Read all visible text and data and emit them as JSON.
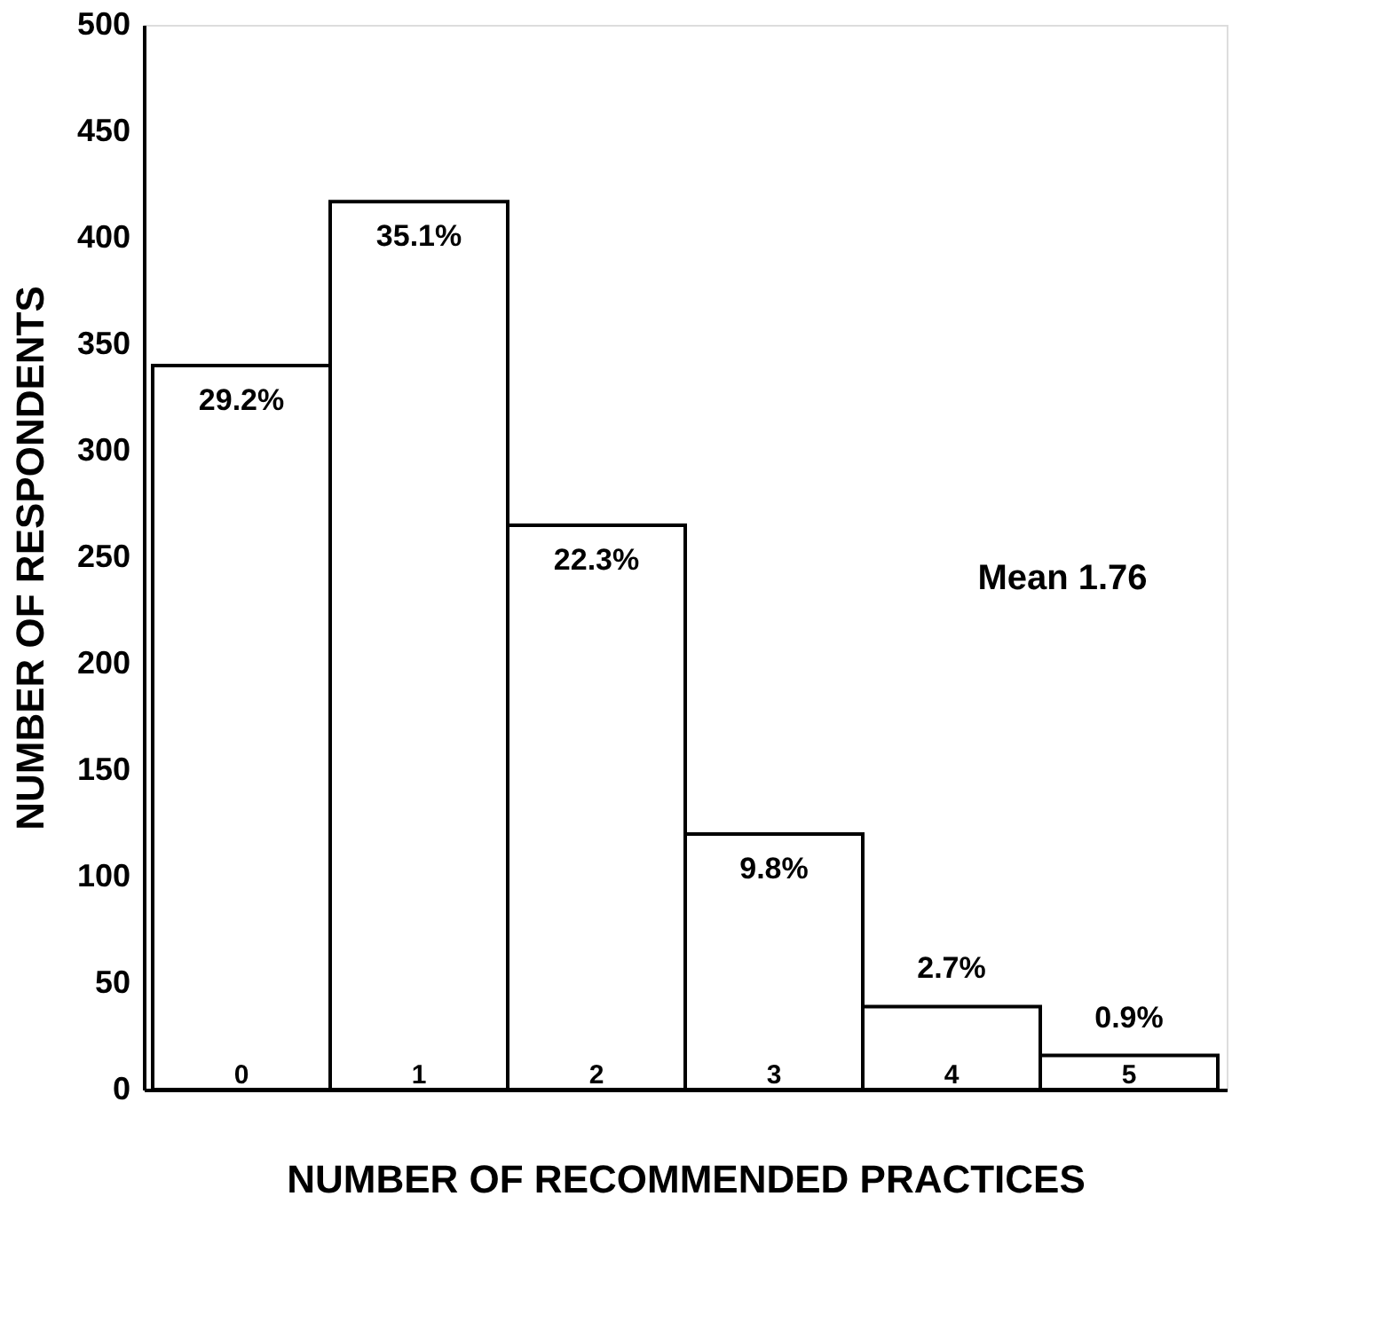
{
  "chart_data": {
    "type": "bar",
    "xlabel": "NUMBER OF RECOMMENDED PRACTICES",
    "ylabel": "NUMBER OF RESPONDENTS",
    "categories": [
      "0",
      "1",
      "2",
      "3",
      "4",
      "5"
    ],
    "values": [
      340,
      417,
      265,
      120,
      39,
      16
    ],
    "color": "#ffffff",
    "ylim": [
      0,
      500
    ],
    "yticks": [
      0,
      50,
      100,
      150,
      200,
      250,
      300,
      350,
      400,
      450,
      500
    ],
    "grid": false,
    "annotations": [
      {
        "text": "29.2%",
        "x": "0",
        "y": 340
      },
      {
        "text": "35.1%",
        "x": "1",
        "y": 417
      },
      {
        "text": "22.3%",
        "x": "2",
        "y": 265
      },
      {
        "text": "9.8%",
        "x": "3",
        "y": 120
      },
      {
        "text": "2.7%",
        "x": "4",
        "y": 39
      },
      {
        "text": "0.9%",
        "x": "5",
        "y": 16
      },
      "Mean 1.76"
    ]
  }
}
